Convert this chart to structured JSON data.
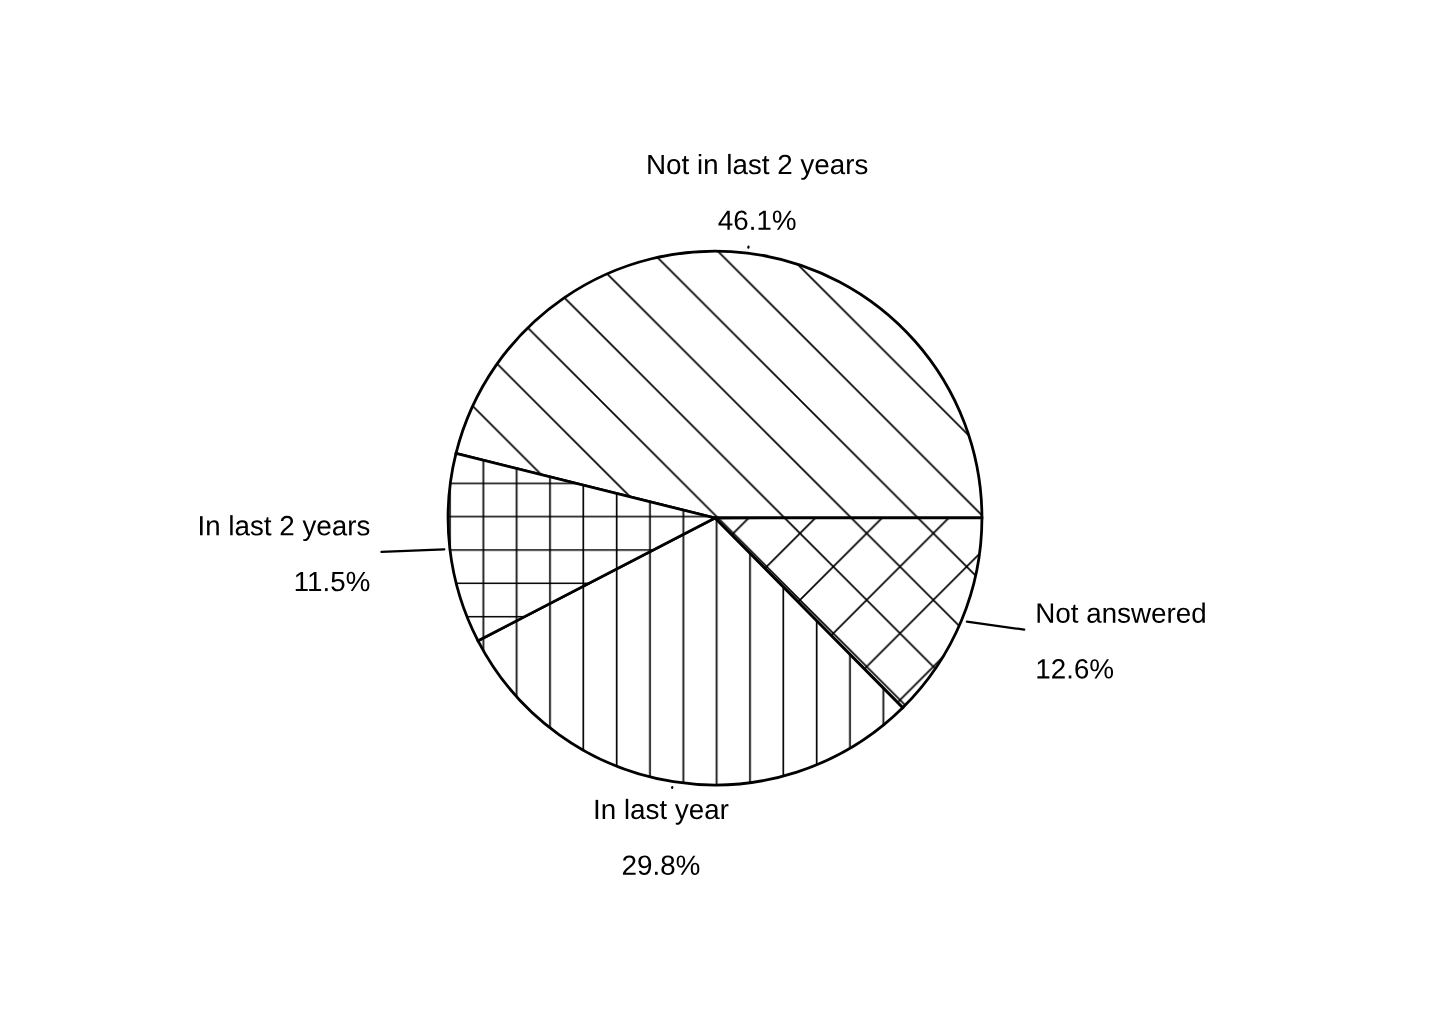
{
  "chart_data": {
    "type": "pie",
    "categories": [
      "Not in last 2 years",
      "Not answered",
      "In last year",
      "In last 2 years"
    ],
    "values": [
      46.1,
      12.6,
      29.8,
      11.5
    ],
    "value_labels": [
      "46.1%",
      "12.6%",
      "29.8%",
      "11.5%"
    ],
    "colors": [
      "#ffffff",
      "#ffffff",
      "#ffffff",
      "#ffffff"
    ],
    "legend": false
  }
}
